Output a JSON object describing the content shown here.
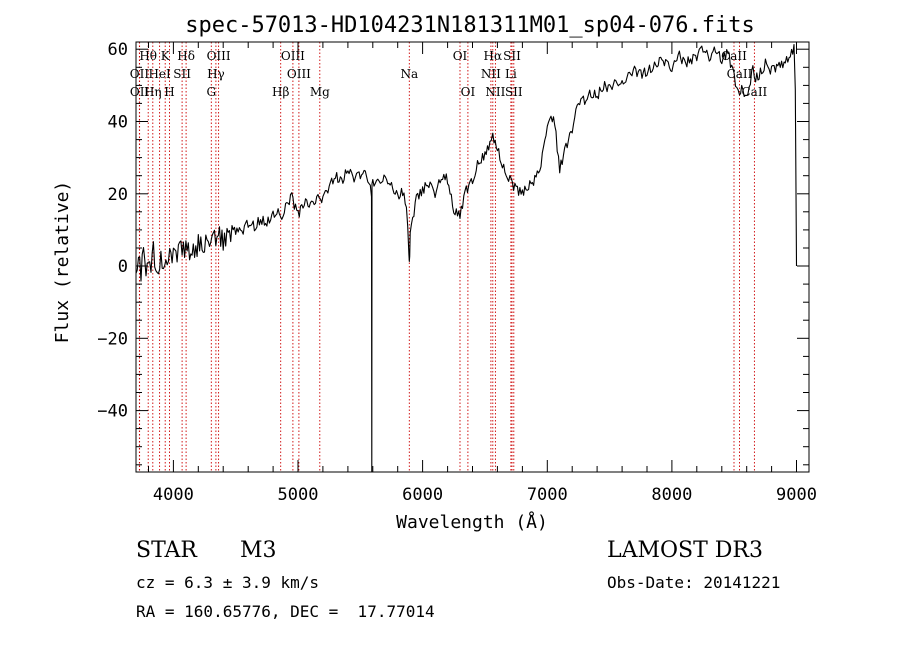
{
  "chart_data": {
    "type": "line",
    "title": "spec-57013-HD104231N181311M01_sp04-076.fits",
    "xlabel": "Wavelength (Å)",
    "ylabel": "Flux (relative)",
    "xlim": [
      3700,
      9100
    ],
    "ylim": [
      -57,
      62
    ],
    "x_ticks": [
      4000,
      5000,
      6000,
      7000,
      8000,
      9000
    ],
    "y_ticks": [
      -40,
      -20,
      0,
      20,
      40,
      60
    ],
    "grid": false,
    "line_color": "#000000",
    "marker_color": "#cc0000",
    "series": [
      {
        "name": "flux",
        "x": [
          3700,
          3720,
          3740,
          3760,
          3780,
          3800,
          3820,
          3840,
          3860,
          3880,
          3900,
          3920,
          3940,
          3960,
          3980,
          4000,
          4050,
          4100,
          4150,
          4200,
          4250,
          4300,
          4350,
          4400,
          4450,
          4500,
          4550,
          4600,
          4650,
          4700,
          4750,
          4800,
          4850,
          4860,
          4900,
          4950,
          5000,
          5050,
          5100,
          5150,
          5200,
          5250,
          5300,
          5350,
          5400,
          5450,
          5500,
          5550,
          5590,
          5592,
          5594,
          5600,
          5650,
          5700,
          5750,
          5800,
          5850,
          5880,
          5890,
          5893,
          5896,
          5900,
          5950,
          6000,
          6050,
          6100,
          6150,
          6200,
          6250,
          6300,
          6350,
          6400,
          6450,
          6500,
          6550,
          6563,
          6600,
          6650,
          6700,
          6750,
          6800,
          6850,
          6900,
          6950,
          7000,
          7050,
          7100,
          7150,
          7200,
          7250,
          7300,
          7350,
          7400,
          7450,
          7500,
          7550,
          7600,
          7650,
          7700,
          7750,
          7800,
          7850,
          7900,
          7950,
          8000,
          8050,
          8100,
          8150,
          8200,
          8250,
          8300,
          8350,
          8400,
          8450,
          8500,
          8542,
          8560,
          8600,
          8650,
          8662,
          8700,
          8750,
          8800,
          8850,
          8900,
          8950,
          8980,
          8990,
          9000
        ],
        "y": [
          -2,
          5,
          -4,
          7,
          0,
          3,
          -2,
          4,
          1,
          0,
          3,
          -1,
          2,
          4,
          1,
          3,
          4,
          5,
          3,
          6,
          6,
          5,
          9,
          7,
          9,
          10,
          9,
          12,
          11,
          13,
          12,
          14,
          15,
          13,
          17,
          19,
          14,
          18,
          17,
          19,
          18,
          22,
          25,
          23,
          27,
          24,
          25,
          26,
          20,
          -57,
          22,
          23,
          24,
          25,
          22,
          19,
          21,
          12,
          2,
          0,
          2,
          9,
          19,
          21,
          23,
          19,
          25,
          24,
          15,
          14,
          21,
          24,
          29,
          31,
          35,
          36,
          33,
          27,
          24,
          21,
          20,
          22,
          24,
          28,
          38,
          42,
          27,
          33,
          38,
          45,
          46,
          48,
          47,
          50,
          49,
          51,
          51,
          53,
          54,
          53,
          54,
          55,
          57,
          56,
          54,
          59,
          56,
          57,
          58,
          60,
          58,
          60,
          57,
          59,
          52,
          48,
          50,
          46,
          55,
          52,
          53,
          56,
          54,
          55,
          56,
          58,
          60,
          50,
          0
        ]
      }
    ],
    "lines": [
      {
        "label": "Hθ",
        "wavelength": 3798,
        "row": 1
      },
      {
        "label": "OII",
        "wavelength": 3727,
        "row": 2
      },
      {
        "label": "OII",
        "wavelength": 3729,
        "row": 3
      },
      {
        "label": "HeI",
        "wavelength": 3889,
        "row": 2
      },
      {
        "label": "Hη",
        "wavelength": 3835,
        "row": 3
      },
      {
        "label": "K",
        "wavelength": 3934,
        "row": 1
      },
      {
        "label": "SII",
        "wavelength": 4070,
        "row": 2
      },
      {
        "label": "H",
        "wavelength": 3969,
        "row": 3
      },
      {
        "label": "Hδ",
        "wavelength": 4102,
        "row": 1
      },
      {
        "label": "OIII",
        "wavelength": 4363,
        "row": 1
      },
      {
        "label": "Hγ",
        "wavelength": 4341,
        "row": 2
      },
      {
        "label": "G",
        "wavelength": 4304,
        "row": 3
      },
      {
        "label": "OIII",
        "wavelength": 4959,
        "row": 1
      },
      {
        "label": "OIII",
        "wavelength": 5007,
        "row": 2
      },
      {
        "label": "Hβ",
        "wavelength": 4861,
        "row": 3
      },
      {
        "label": "Mg",
        "wavelength": 5175,
        "row": 3
      },
      {
        "label": "Na",
        "wavelength": 5893,
        "row": 2
      },
      {
        "label": "OI",
        "wavelength": 6300,
        "row": 1
      },
      {
        "label": "OI",
        "wavelength": 6363,
        "row": 3
      },
      {
        "label": "Hα",
        "wavelength": 6563,
        "row": 1
      },
      {
        "label": "NII",
        "wavelength": 6548,
        "row": 2
      },
      {
        "label": "NII",
        "wavelength": 6584,
        "row": 3
      },
      {
        "label": "SII",
        "wavelength": 6717,
        "row": 1
      },
      {
        "label": "Li",
        "wavelength": 6708,
        "row": 2
      },
      {
        "label": "SII",
        "wavelength": 6731,
        "row": 3
      },
      {
        "label": "CaII",
        "wavelength": 8498,
        "row": 1
      },
      {
        "label": "CaII",
        "wavelength": 8542,
        "row": 2
      },
      {
        "label": "CaII",
        "wavelength": 8662,
        "row": 3
      }
    ]
  },
  "info": {
    "object_type": "STAR",
    "subclass": "M3",
    "survey": "LAMOST DR3",
    "cz": "cz = 6.3 ± 3.9 km/s",
    "obs_date": "Obs-Date: 20141221",
    "coords": "RA = 160.65776, DEC =  17.77014"
  }
}
